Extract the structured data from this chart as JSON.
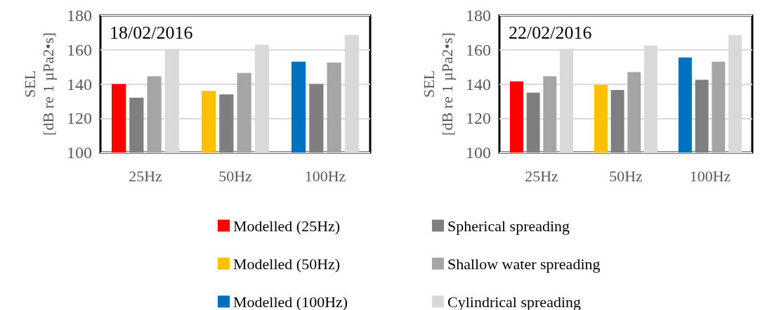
{
  "chart_data": [
    {
      "type": "bar",
      "title": "18/02/2016",
      "ylabel": "SEL\n[dB re 1 µPa2•s]",
      "categories": [
        "25Hz",
        "50Hz",
        "100Hz"
      ],
      "ylim": [
        100,
        180
      ],
      "yticks": [
        100,
        120,
        140,
        160,
        180
      ],
      "grid": "y",
      "legend": "bottom",
      "series": [
        {
          "name": "Modelled (25Hz)",
          "color": "#ff0000",
          "values": [
            140,
            null,
            null
          ]
        },
        {
          "name": "Modelled (50Hz)",
          "color": "#ffc000",
          "values": [
            null,
            136,
            null
          ]
        },
        {
          "name": "Modelled (100Hz)",
          "color": "#0070c0",
          "values": [
            null,
            null,
            153
          ]
        },
        {
          "name": "Spherical spreading",
          "color": "#7f7f7f",
          "values": [
            132,
            134,
            140
          ]
        },
        {
          "name": "Shallow water spreading",
          "color": "#a5a5a5",
          "values": [
            144.5,
            146.5,
            152.5
          ]
        },
        {
          "name": "Cylindrical spreading",
          "color": "#d9d9d9",
          "values": [
            160.5,
            163,
            168.5
          ]
        }
      ]
    },
    {
      "type": "bar",
      "title": "22/02/2016",
      "ylabel": "SEL\n[dB re 1 µPa2•s]",
      "categories": [
        "25Hz",
        "50Hz",
        "100Hz"
      ],
      "ylim": [
        100,
        180
      ],
      "yticks": [
        100,
        120,
        140,
        160,
        180
      ],
      "grid": "y",
      "series": [
        {
          "color": "#ff0000",
          "values": [
            141.5,
            null,
            null
          ]
        },
        {
          "color": "#ffc000",
          "values": [
            null,
            139.5,
            null
          ]
        },
        {
          "color": "#0070c0",
          "values": [
            null,
            null,
            155.5
          ]
        },
        {
          "color": "#7f7f7f",
          "values": [
            135,
            136.5,
            142.5
          ]
        },
        {
          "color": "#a5a5a5",
          "values": [
            144.5,
            147,
            153
          ]
        },
        {
          "color": "#d9d9d9",
          "values": [
            160.5,
            162.5,
            168.5
          ]
        }
      ]
    }
  ]
}
